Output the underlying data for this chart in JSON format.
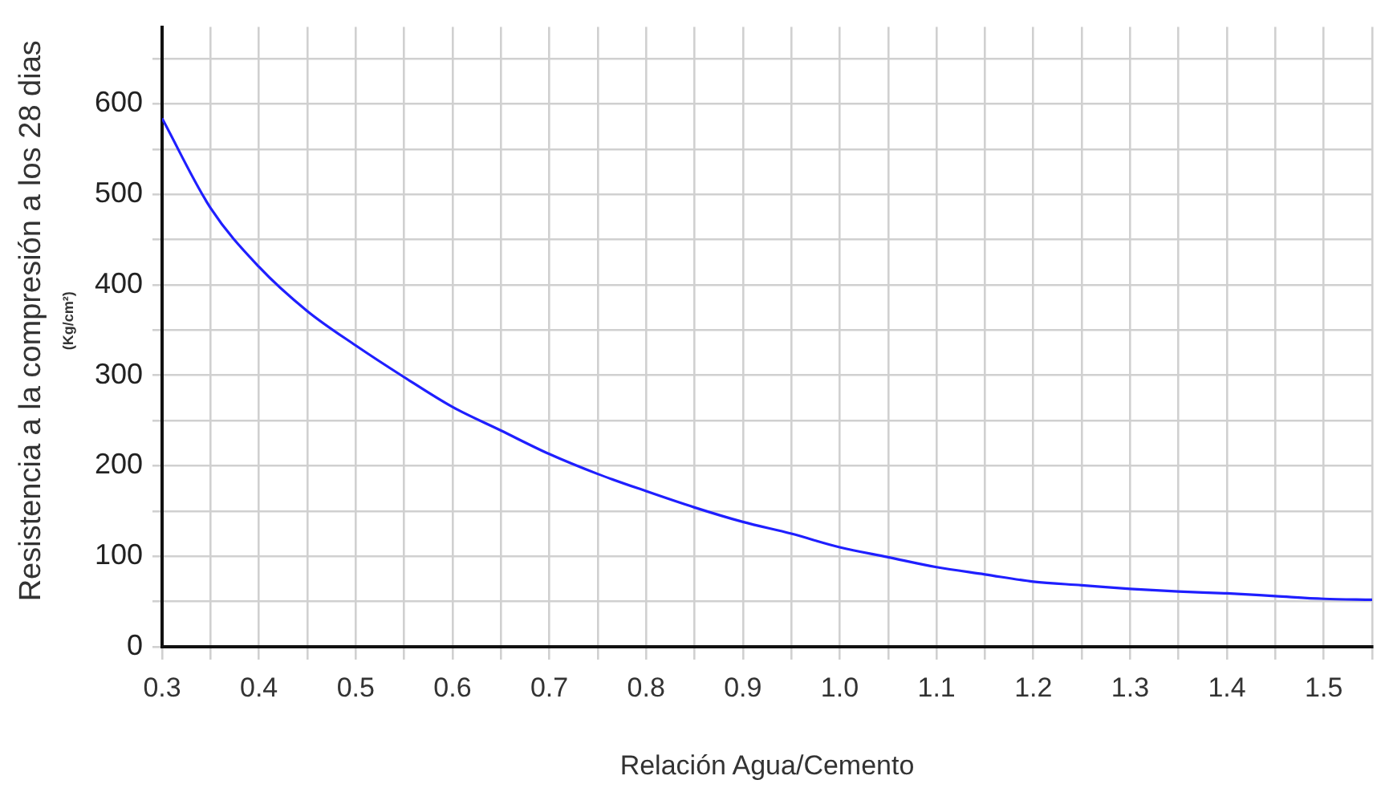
{
  "chart_data": {
    "type": "line",
    "xlabel": "Relación Agua/Cemento",
    "ylabel": "Resistencia a la compresión a los 28 dias\n(Kg/cm²)",
    "x": [
      0.3,
      0.35,
      0.4,
      0.45,
      0.5,
      0.55,
      0.6,
      0.65,
      0.7,
      0.75,
      0.8,
      0.85,
      0.9,
      0.95,
      1.0,
      1.05,
      1.1,
      1.15,
      1.2,
      1.25,
      1.3,
      1.35,
      1.4,
      1.45,
      1.5,
      1.55
    ],
    "series": [
      {
        "color": "#1f1fff",
        "values": [
          584,
          485,
          420,
          371,
          333,
          298,
          265,
          239,
          213,
          191,
          172,
          154,
          138,
          125,
          110,
          99,
          88,
          80,
          72,
          68,
          64,
          61,
          59,
          56,
          53,
          52
        ]
      }
    ],
    "xlim": [
      0.3,
      1.55
    ],
    "xticks": [
      0.3,
      {
        "value": 0.35,
        "label": null
      },
      0.4,
      {
        "value": 0.45,
        "label": null
      },
      0.5,
      {
        "value": 0.55,
        "label": null
      },
      0.6,
      {
        "value": 0.65,
        "label": null
      },
      0.7,
      {
        "value": 0.75,
        "label": null
      },
      0.8,
      {
        "value": 0.85,
        "label": null
      },
      0.9,
      {
        "value": 0.95,
        "label": null
      },
      {
        "value": 1.0,
        "label": "1.0"
      },
      {
        "value": 1.05,
        "label": null
      },
      1.1,
      {
        "value": 1.15,
        "label": null
      },
      1.2,
      {
        "value": 1.25,
        "label": null
      },
      1.3,
      {
        "value": 1.35,
        "label": null
      },
      1.4,
      {
        "value": 1.45,
        "label": null
      },
      1.5,
      {
        "value": 1.55,
        "label": null
      }
    ],
    "ylim": [
      0,
      685
    ],
    "yticks": [
      0,
      {
        "value": 50,
        "label": null
      },
      100,
      {
        "value": 150,
        "label": null
      },
      200,
      {
        "value": 250,
        "label": null
      },
      300,
      {
        "value": 350,
        "label": null
      },
      400,
      {
        "value": 450,
        "label": null
      },
      500,
      {
        "value": 550,
        "label": null
      },
      600,
      {
        "value": 650,
        "label": null
      }
    ],
    "grid": true,
    "legend": false,
    "marker": "none",
    "line_style": "solid"
  }
}
